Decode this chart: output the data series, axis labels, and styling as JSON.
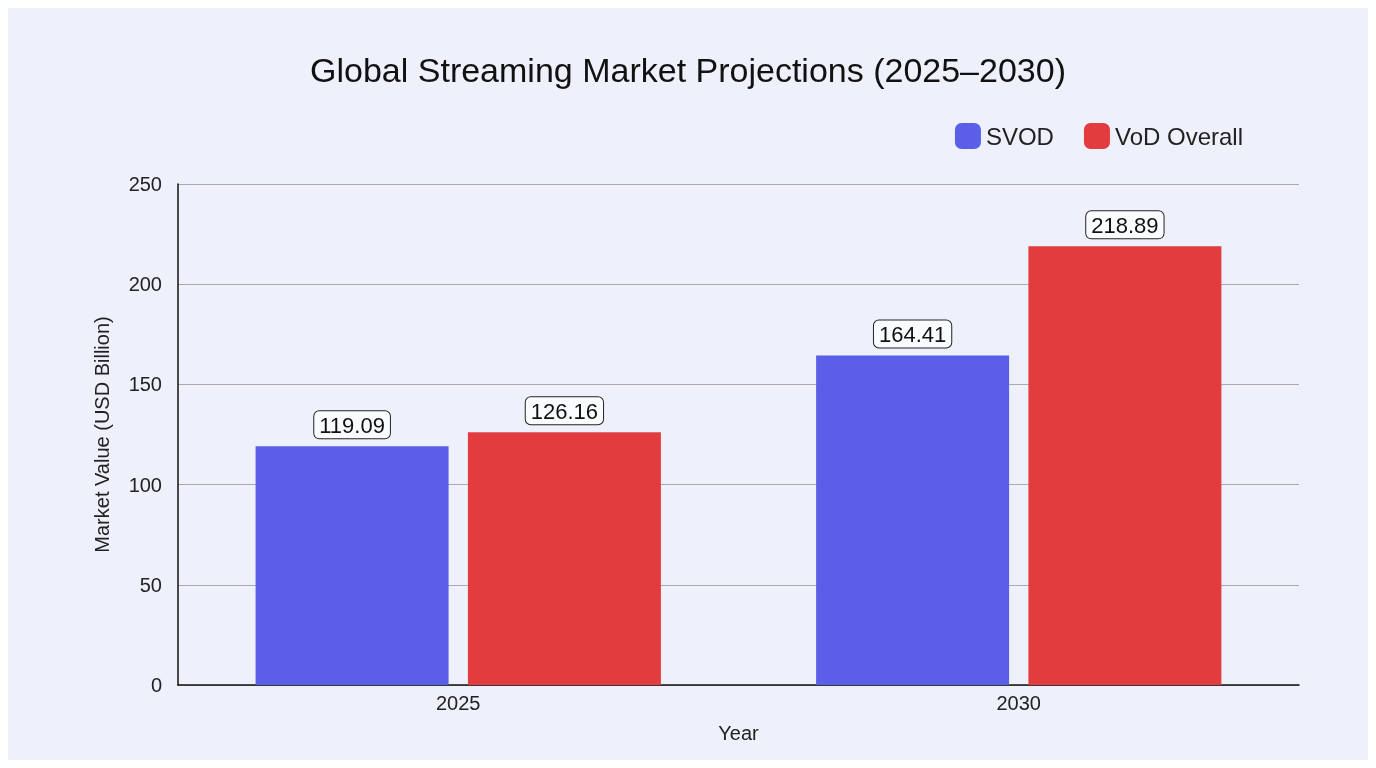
{
  "chart_data": {
    "type": "bar",
    "title": "Global Streaming Market Projections (2025–2030)",
    "xlabel": "Year",
    "ylabel": "Market Value (USD Billion)",
    "categories": [
      "2025",
      "2030"
    ],
    "series": [
      {
        "name": "SVOD",
        "color": "#5b5ee9",
        "values": [
          119.09,
          164.41
        ]
      },
      {
        "name": "VoD Overall",
        "color": "#e33c3f",
        "values": [
          126.16,
          218.89
        ]
      }
    ],
    "ylim": [
      0,
      250
    ],
    "yticks": [
      0,
      50,
      100,
      150,
      200,
      250
    ],
    "grid": "y",
    "legend": "top right",
    "data_labels": true
  }
}
